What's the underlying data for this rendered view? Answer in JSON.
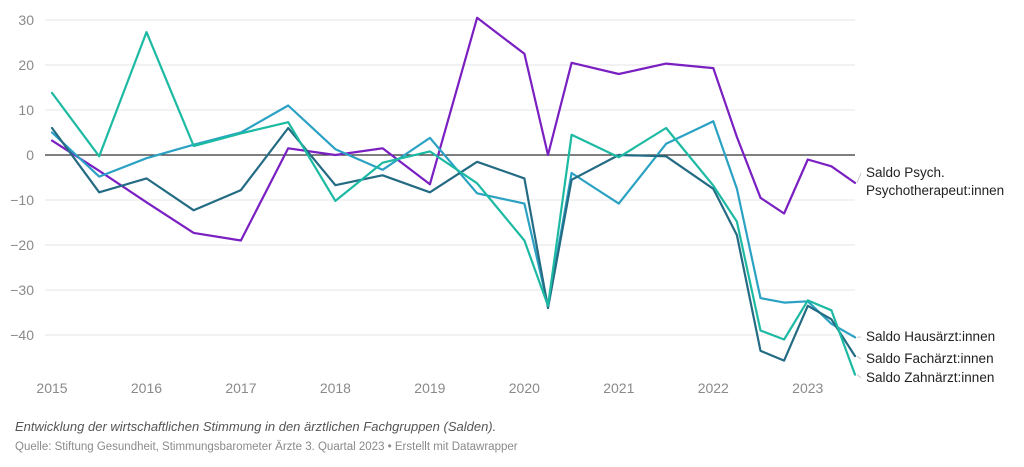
{
  "chart_data": {
    "type": "line",
    "ylim": [
      -50,
      30
    ],
    "yticks": [
      30,
      20,
      10,
      0,
      -10,
      -20,
      -30,
      -40
    ],
    "ytick_labels": [
      "30",
      "20",
      "10",
      "0",
      "−10",
      "−20",
      "−30",
      "−40"
    ],
    "xticks": [
      2015,
      2016,
      2017,
      2018,
      2019,
      2020,
      2021,
      2022,
      2023
    ],
    "xtick_labels": [
      "2015",
      "2016",
      "2017",
      "2018",
      "2019",
      "2020",
      "2021",
      "2022",
      "2023"
    ],
    "grid": true,
    "x": [
      2015.0,
      2015.5,
      2016.0,
      2016.5,
      2017.0,
      2017.5,
      2018.0,
      2018.5,
      2019.0,
      2019.5,
      2020.0,
      2020.25,
      2020.5,
      2021.0,
      2021.5,
      2022.0,
      2022.25,
      2022.5,
      2022.75,
      2023.0,
      2023.25,
      2023.5
    ],
    "series": [
      {
        "name": "Saldo Psych. Psychotherapeut:innen",
        "label_lines": [
          "Saldo Psych.",
          "Psychotherapeut:innen"
        ],
        "color": "#7a1fc2",
        "values": [
          3.2,
          -3.5,
          -10.5,
          -17.3,
          -19.0,
          1.5,
          0.0,
          1.5,
          -6.5,
          30.5,
          22.5,
          0.0,
          20.5,
          18.0,
          20.3,
          19.3,
          4.0,
          -9.5,
          -13.0,
          -1.0,
          -2.5,
          -6.2
        ]
      },
      {
        "name": "Saldo Hausärzt:innen",
        "label_lines": [
          "Saldo Hausärzt:innen"
        ],
        "color": "#2ba2c4",
        "values": [
          5.0,
          -4.8,
          -0.7,
          2.3,
          5.0,
          11.0,
          1.3,
          -3.3,
          3.8,
          -8.5,
          -10.8,
          -33.5,
          -4.0,
          -10.8,
          2.5,
          7.5,
          -7.5,
          -31.8,
          -32.8,
          -32.5,
          -37.5,
          -40.5
        ]
      },
      {
        "name": "Saldo Fachärzt:innen",
        "label_lines": [
          "Saldo Fachärzt:innen"
        ],
        "color": "#246b84",
        "values": [
          6.0,
          -8.3,
          -5.2,
          -12.3,
          -7.8,
          6.0,
          -6.7,
          -4.5,
          -8.3,
          -1.5,
          -5.2,
          -34.0,
          -5.5,
          0.0,
          -0.3,
          -7.5,
          -17.8,
          -43.5,
          -45.7,
          -33.5,
          -36.5,
          -44.7
        ]
      },
      {
        "name": "Saldo Zahnärzt:innen",
        "label_lines": [
          "Saldo Zahnärzt:innen"
        ],
        "color": "#1cbaa3",
        "values": [
          13.8,
          -0.3,
          27.3,
          2.0,
          4.8,
          7.3,
          -10.2,
          -1.7,
          0.8,
          -6.3,
          -19.0,
          -33.5,
          4.5,
          -0.5,
          6.0,
          -6.8,
          -14.8,
          -39.0,
          -41.0,
          -32.3,
          -34.5,
          -48.8
        ]
      }
    ]
  },
  "caption": "Entwicklung der wirtschaftlichen Stimmung in den ärztlichen Fachgruppen (Salden).",
  "source": "Quelle: Stiftung Gesundheit, Stimmungsbarometer Ärzte 3. Quartal 2023 • Erstellt mit Datawrapper"
}
